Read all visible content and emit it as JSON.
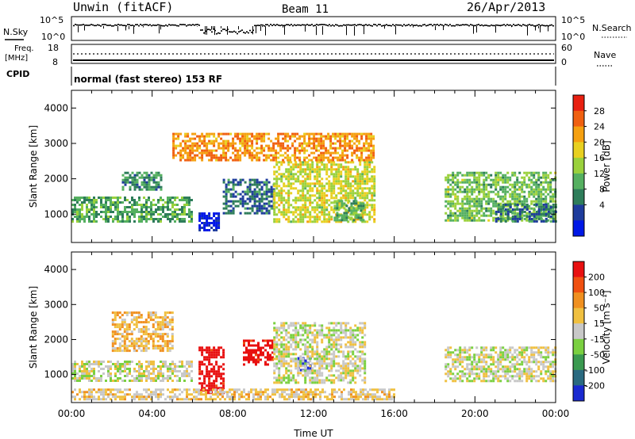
{
  "header": {
    "station": "Unwin (fitACF)",
    "beam": "Beam 11",
    "date": "26/Apr/2013"
  },
  "summary": {
    "nsky_label": "N.Sky",
    "nsky_ticks": [
      "10^5",
      "10^0"
    ],
    "nsearch_label": "N.Search",
    "nsearch_ticks": [
      "10^5",
      "10^0"
    ],
    "freq_label": "Freq.",
    "freq_unit": "[MHz]",
    "freq_ticks": [
      "18",
      "8"
    ],
    "nave_label": "Nave",
    "nave_ticks": [
      "60",
      "0"
    ],
    "cpid_label": "CPID",
    "mode_text": "normal (fast stereo) 153 RF"
  },
  "panels": {
    "ylabel": "Slant Range [km]",
    "yticks": [
      "4000",
      "3000",
      "2000",
      "1000"
    ],
    "xticks": [
      "00:00",
      "04:00",
      "08:00",
      "12:00",
      "16:00",
      "20:00",
      "00:00"
    ],
    "xlabel": "Time UT"
  },
  "colorbars": {
    "power": {
      "label": "Power [dB]",
      "ticks": [
        "28",
        "24",
        "20",
        "16",
        "12",
        "8",
        "4"
      ],
      "colors": [
        "#0018e6",
        "#1e3c9c",
        "#2e7d5a",
        "#55b060",
        "#9ad13c",
        "#e8d020",
        "#f5a010",
        "#f06010",
        "#e82010"
      ]
    },
    "velocity": {
      "label": "Velocity [m s⁻¹]",
      "ticks": [
        "200",
        "100",
        "50",
        "15",
        "-15",
        "-50",
        "-100",
        "-200"
      ],
      "colors": [
        "#1a2ad0",
        "#2a6a80",
        "#3a9a50",
        "#7ad040",
        "#c8c8c8",
        "#f0c040",
        "#f09020",
        "#f05010",
        "#e81010"
      ]
    }
  },
  "chart_data": [
    {
      "type": "heatmap",
      "name": "power",
      "x_range_hours": [
        0,
        24
      ],
      "y_range_km": [
        200,
        4500
      ],
      "color_scale_db": [
        0,
        32
      ],
      "echo_bands": [
        {
          "t_start": 0.0,
          "t_end": 6.0,
          "r_low": 800,
          "r_high": 1500,
          "power_db": 20
        },
        {
          "t_start": 2.5,
          "t_end": 4.5,
          "r_low": 1700,
          "r_high": 2200,
          "power_db": 22
        },
        {
          "t_start": 6.3,
          "t_end": 7.3,
          "r_low": 550,
          "r_high": 1050,
          "power_db": 30
        },
        {
          "t_start": 7.5,
          "t_end": 10.0,
          "r_low": 1000,
          "r_high": 2000,
          "power_db": 24
        },
        {
          "t_start": 10.0,
          "t_end": 15.0,
          "r_low": 800,
          "r_high": 2500,
          "power_db": 14
        },
        {
          "t_start": 13.0,
          "t_end": 14.5,
          "r_low": 800,
          "r_high": 1400,
          "power_db": 20
        },
        {
          "t_start": 18.5,
          "t_end": 24.0,
          "r_low": 800,
          "r_high": 2200,
          "power_db": 18
        },
        {
          "t_start": 21.0,
          "t_end": 24.0,
          "r_low": 800,
          "r_high": 1300,
          "power_db": 24
        },
        {
          "t_start": 5.0,
          "t_end": 15.0,
          "r_low": 2500,
          "r_high": 3300,
          "power_db": 8
        }
      ]
    },
    {
      "type": "heatmap",
      "name": "velocity",
      "x_range_hours": [
        0,
        24
      ],
      "y_range_km": [
        200,
        4500
      ],
      "color_scale_ms": [
        -200,
        200
      ],
      "echo_bands": [
        {
          "t_start": 0.0,
          "t_end": 6.0,
          "r_low": 800,
          "r_high": 1400,
          "velocity_ms": 0
        },
        {
          "t_start": 6.3,
          "t_end": 7.5,
          "r_low": 500,
          "r_high": 1800,
          "velocity_ms": -200
        },
        {
          "t_start": 8.5,
          "t_end": 10.0,
          "r_low": 1300,
          "r_high": 2000,
          "velocity_ms": -200
        },
        {
          "t_start": 11.2,
          "t_end": 11.8,
          "r_low": 1100,
          "r_high": 1500,
          "velocity_ms": 200
        },
        {
          "t_start": 2.0,
          "t_end": 5.0,
          "r_low": 1700,
          "r_high": 2800,
          "velocity_ms": -50
        },
        {
          "t_start": 10.0,
          "t_end": 14.5,
          "r_low": 800,
          "r_high": 2500,
          "velocity_ms": 0
        },
        {
          "t_start": 18.5,
          "t_end": 24.0,
          "r_low": 800,
          "r_high": 1800,
          "velocity_ms": 0
        },
        {
          "t_start": 0.0,
          "t_end": 16.0,
          "r_low": 300,
          "r_high": 600,
          "velocity_ms": -30
        }
      ]
    }
  ]
}
